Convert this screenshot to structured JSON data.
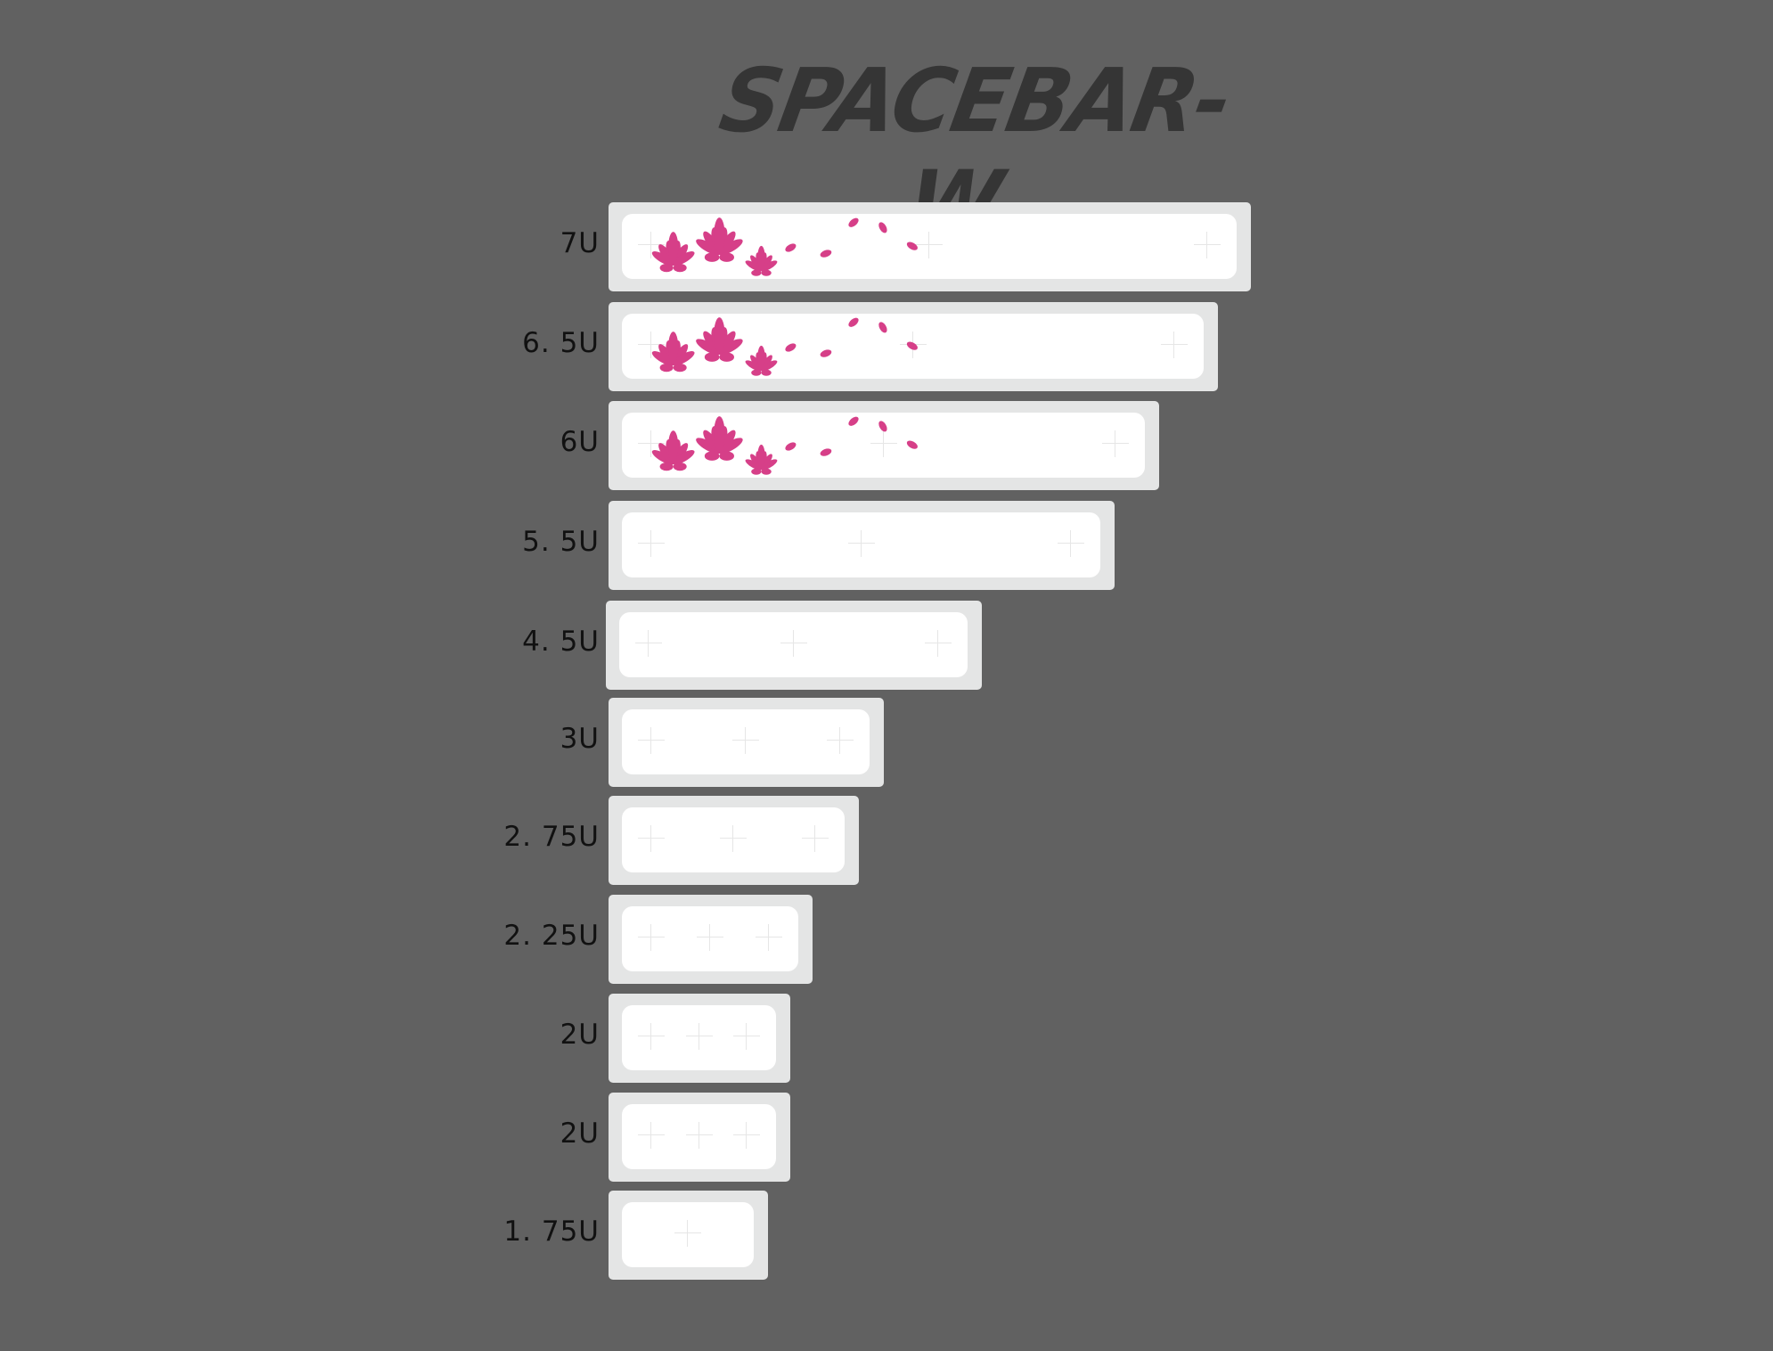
{
  "title": "SPACEBAR-W",
  "accent_color": "#d63f88",
  "keys": [
    {
      "label": "7U",
      "design": "lotus"
    },
    {
      "label": "6. 5U",
      "design": "lotus"
    },
    {
      "label": "6U",
      "design": "lotus"
    },
    {
      "label": "5. 5U",
      "design": "blank"
    },
    {
      "label": "4. 5U",
      "design": "blank"
    },
    {
      "label": "3U",
      "design": "blank"
    },
    {
      "label": "2. 75U",
      "design": "blank"
    },
    {
      "label": "2. 25U",
      "design": "blank"
    },
    {
      "label": "2U",
      "design": "blank"
    },
    {
      "label": "2U",
      "design": "blank"
    },
    {
      "label": "1. 75U",
      "design": "blank"
    }
  ]
}
